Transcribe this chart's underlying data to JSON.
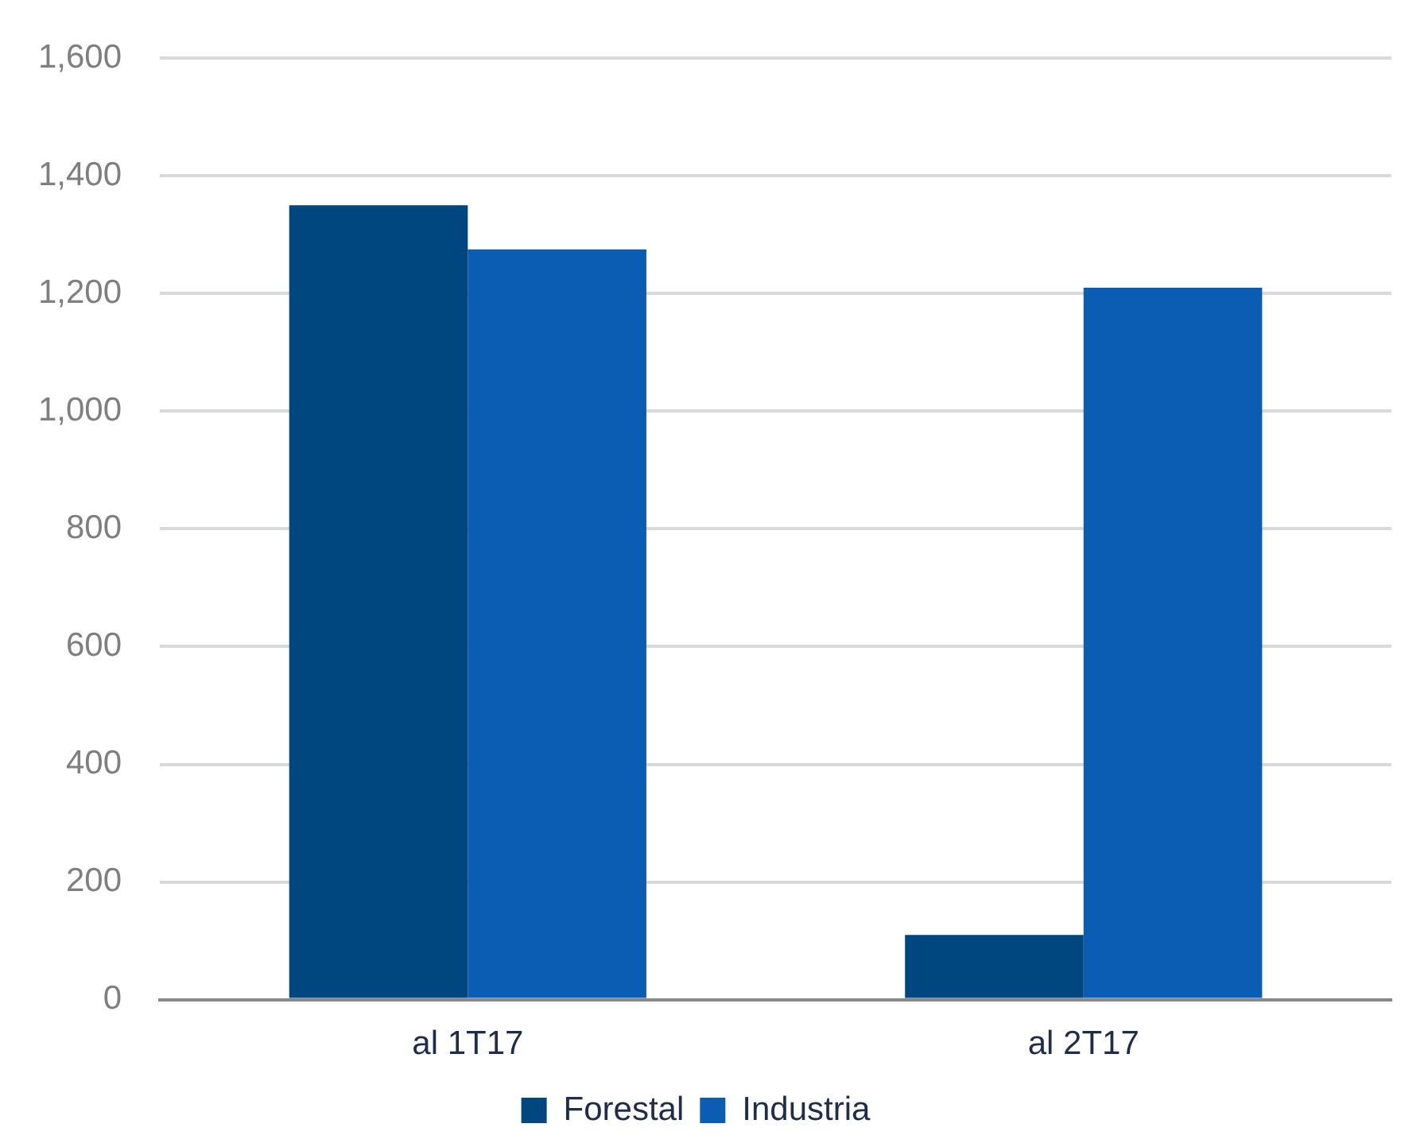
{
  "chart_data": {
    "type": "bar",
    "categories": [
      "al 1T17",
      "al 2T17"
    ],
    "series": [
      {
        "name": "Forestal",
        "color": "#00467f",
        "values": [
          1350,
          110
        ]
      },
      {
        "name": "Industria",
        "color": "#0b5db3",
        "values": [
          1275,
          1210
        ]
      }
    ],
    "ylim": [
      0,
      1600
    ],
    "yticks": [
      0,
      {
        "value": 200,
        "label": "200"
      },
      {
        "value": 400,
        "label": "400"
      },
      {
        "value": 600,
        "label": "600"
      },
      {
        "value": 800,
        "label": "800"
      },
      {
        "value": 1000,
        "label": "1,000"
      },
      {
        "value": 1200,
        "label": "1,200"
      },
      {
        "value": 1400,
        "label": "1,400"
      },
      {
        "value": 1600,
        "label": "1,600"
      }
    ],
    "grid": "y",
    "legend": "bottom"
  }
}
